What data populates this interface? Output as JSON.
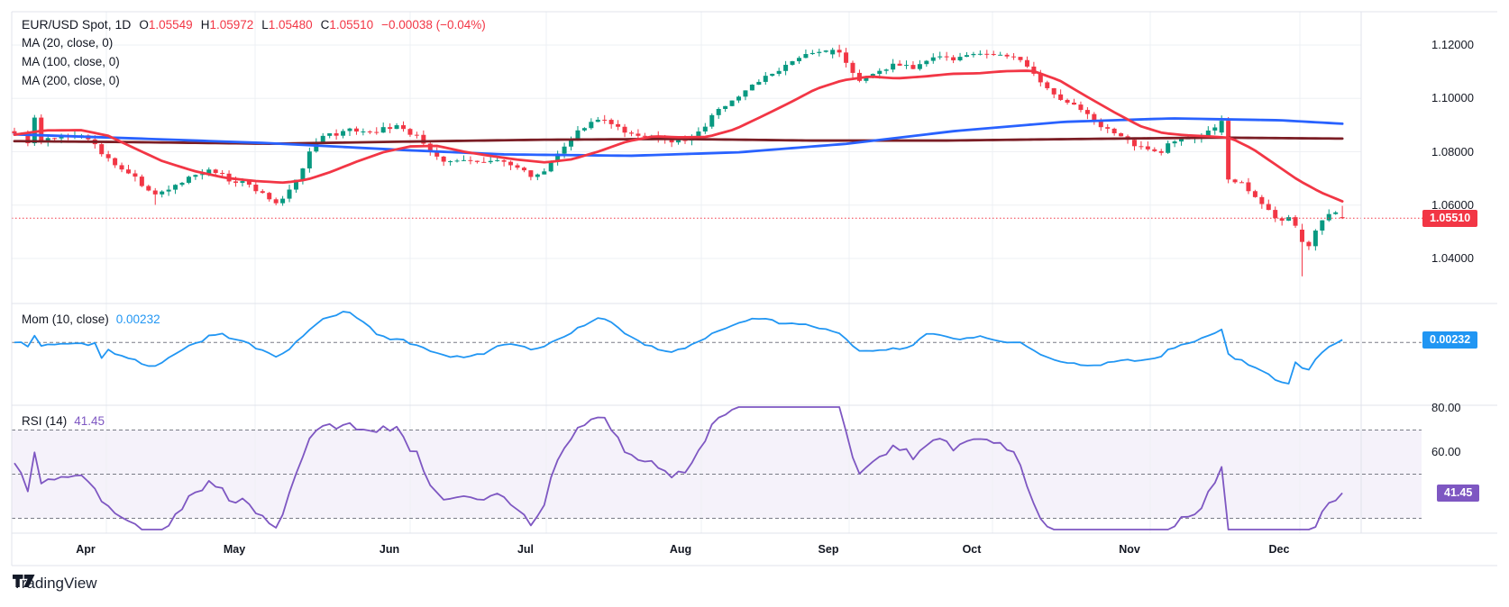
{
  "legend": {
    "symbol": "EUR/USD Spot, 1D",
    "ohlc_tokens": [
      {
        "k": "O",
        "v": "1.05549"
      },
      {
        "k": "H",
        "v": "1.05972"
      },
      {
        "k": "L",
        "v": "1.05480"
      },
      {
        "k": "C",
        "v": "1.05510"
      }
    ],
    "change_token": "−0.00038 (−0.04%)",
    "ma_lines": [
      "MA (20, close, 0)",
      "MA (100, close, 0)",
      "MA (200, close, 0)"
    ]
  },
  "price_axis": {
    "ticks": [
      "1.12000",
      "1.10000",
      "1.08000",
      "1.06000",
      "1.04000"
    ],
    "tick_values": [
      1.12,
      1.1,
      1.08,
      1.06,
      1.04
    ],
    "current_badge": "1.05510"
  },
  "momentum_pane": {
    "label": "Mom (10, close)",
    "value": "0.00232",
    "badge": "0.00232"
  },
  "rsi_pane": {
    "label": "RSI (14)",
    "value": "41.45",
    "badge": "41.45",
    "axis_labels": [
      "80.00",
      "60.00"
    ],
    "axis_label_values": [
      80,
      60
    ]
  },
  "time_axis": {
    "months": [
      "Apr",
      "May",
      "Jun",
      "Jul",
      "Aug",
      "Sep",
      "Oct",
      "Nov",
      "Dec"
    ]
  },
  "attribution": {
    "brand": "TradingView"
  },
  "colors": {
    "background": "#ffffff",
    "frame": "#e0e3eb",
    "grid": "#eef0f4",
    "text": "#131722",
    "up": "#089981",
    "down": "#f23645",
    "ma20": "#f23645",
    "ma100": "#2962ff",
    "ma200": "#7b1e25",
    "momentum": "#2196f3",
    "momentum_badge": "#2196f3",
    "rsi": "#7e57c2",
    "rsi_badge": "#7e57c2",
    "rsi_band_fill": "rgba(126,87,194,0.08)",
    "dashed_level": "#787b86",
    "price_line": "#f23645"
  },
  "chart_data": {
    "type": "candlestick",
    "symbol": "EUR/USD Spot",
    "interval": "1D",
    "last_ohlc": {
      "open": 1.05549,
      "high": 1.05972,
      "low": 1.0548,
      "close": 1.0551,
      "change": -0.00038,
      "change_pct": -0.04
    },
    "current_price": 1.0551,
    "y_ticks": [
      1.12,
      1.1,
      1.08,
      1.06,
      1.04
    ],
    "months": [
      "Apr",
      "May",
      "Jun",
      "Jul",
      "Aug",
      "Sep",
      "Oct",
      "Nov",
      "Dec"
    ],
    "close_path": [
      [
        8,
        1.0858
      ],
      [
        24,
        1.0872
      ],
      [
        32,
        1.0828
      ],
      [
        38,
        1.0922
      ],
      [
        46,
        1.0835
      ],
      [
        58,
        1.085
      ],
      [
        70,
        1.0862
      ],
      [
        82,
        1.0856
      ],
      [
        94,
        1.0855
      ],
      [
        105,
        1.083
      ],
      [
        115,
        1.0788
      ],
      [
        125,
        1.0762
      ],
      [
        135,
        1.074
      ],
      [
        148,
        1.0705
      ],
      [
        160,
        1.0668
      ],
      [
        172,
        1.0645
      ],
      [
        184,
        1.0648
      ],
      [
        196,
        1.0672
      ],
      [
        208,
        1.07
      ],
      [
        222,
        1.0722
      ],
      [
        234,
        1.0732
      ],
      [
        246,
        1.0712
      ],
      [
        258,
        1.0675
      ],
      [
        270,
        1.0692
      ],
      [
        282,
        1.0665
      ],
      [
        295,
        1.063
      ],
      [
        307,
        1.0612
      ],
      [
        320,
        1.0645
      ],
      [
        333,
        1.0722
      ],
      [
        347,
        1.082
      ],
      [
        360,
        1.0866
      ],
      [
        373,
        1.086
      ],
      [
        386,
        1.0885
      ],
      [
        399,
        1.0872
      ],
      [
        412,
        1.0868
      ],
      [
        426,
        1.089
      ],
      [
        440,
        1.0892
      ],
      [
        452,
        1.0878
      ],
      [
        464,
        1.0852
      ],
      [
        476,
        1.08
      ],
      [
        490,
        1.0772
      ],
      [
        504,
        1.0758
      ],
      [
        518,
        1.0768
      ],
      [
        532,
        1.0762
      ],
      [
        546,
        1.0772
      ],
      [
        560,
        1.0768
      ],
      [
        574,
        1.0742
      ],
      [
        588,
        1.0712
      ],
      [
        600,
        1.0722
      ],
      [
        614,
        1.0768
      ],
      [
        628,
        1.083
      ],
      [
        642,
        1.0878
      ],
      [
        656,
        1.0912
      ],
      [
        668,
        1.0926
      ],
      [
        680,
        1.0902
      ],
      [
        694,
        1.0868
      ],
      [
        708,
        1.0852
      ],
      [
        722,
        1.0862
      ],
      [
        736,
        1.0846
      ],
      [
        750,
        1.0836
      ],
      [
        764,
        1.0852
      ],
      [
        778,
        1.088
      ],
      [
        792,
        1.094
      ],
      [
        806,
        1.0982
      ],
      [
        820,
        1.1015
      ],
      [
        834,
        1.1052
      ],
      [
        848,
        1.108
      ],
      [
        862,
        1.1105
      ],
      [
        876,
        1.1135
      ],
      [
        890,
        1.1158
      ],
      [
        904,
        1.1172
      ],
      [
        918,
        1.1185
      ],
      [
        928,
        1.1188
      ],
      [
        938,
        1.113
      ],
      [
        950,
        1.1068
      ],
      [
        962,
        1.1082
      ],
      [
        974,
        1.1102
      ],
      [
        986,
        1.1118
      ],
      [
        1000,
        1.1132
      ],
      [
        1014,
        1.1112
      ],
      [
        1028,
        1.1138
      ],
      [
        1042,
        1.1158
      ],
      [
        1056,
        1.1148
      ],
      [
        1070,
        1.1162
      ],
      [
        1084,
        1.1172
      ],
      [
        1098,
        1.1158
      ],
      [
        1112,
        1.1168
      ],
      [
        1126,
        1.1158
      ],
      [
        1138,
        1.1122
      ],
      [
        1150,
        1.1075
      ],
      [
        1162,
        1.1032
      ],
      [
        1175,
        1.1002
      ],
      [
        1188,
        1.0982
      ],
      [
        1200,
        1.095
      ],
      [
        1212,
        1.092
      ],
      [
        1225,
        1.0888
      ],
      [
        1238,
        1.0858
      ],
      [
        1250,
        1.0842
      ],
      [
        1262,
        1.082
      ],
      [
        1275,
        1.0802
      ],
      [
        1288,
        1.0792
      ],
      [
        1300,
        1.0842
      ],
      [
        1312,
        1.085
      ],
      [
        1324,
        1.0858
      ],
      [
        1336,
        1.0868
      ],
      [
        1348,
        1.0892
      ],
      [
        1356,
        1.0912
      ],
      [
        1364,
        1.0698
      ],
      [
        1376,
        1.0688
      ],
      [
        1388,
        1.0645
      ],
      [
        1400,
        1.0602
      ],
      [
        1410,
        1.0565
      ],
      [
        1418,
        1.0528
      ],
      [
        1428,
        1.0552
      ],
      [
        1436,
        1.0528
      ],
      [
        1444,
        1.0458
      ],
      [
        1452,
        1.0442
      ],
      [
        1460,
        1.0502
      ],
      [
        1470,
        1.0562
      ],
      [
        1480,
        1.0582
      ],
      [
        1489,
        1.0552
      ]
    ],
    "ma20_path": [
      [
        8,
        1.086
      ],
      [
        50,
        1.088
      ],
      [
        90,
        1.0881
      ],
      [
        120,
        1.086
      ],
      [
        150,
        1.0812
      ],
      [
        180,
        1.0765
      ],
      [
        215,
        1.0728
      ],
      [
        250,
        1.0702
      ],
      [
        285,
        1.069
      ],
      [
        315,
        1.0684
      ],
      [
        340,
        1.0695
      ],
      [
        365,
        1.0722
      ],
      [
        395,
        1.0762
      ],
      [
        425,
        1.0798
      ],
      [
        455,
        1.082
      ],
      [
        485,
        1.0822
      ],
      [
        515,
        1.08
      ],
      [
        545,
        1.0784
      ],
      [
        575,
        1.077
      ],
      [
        605,
        1.076
      ],
      [
        635,
        1.0772
      ],
      [
        665,
        1.0802
      ],
      [
        695,
        1.0838
      ],
      [
        725,
        1.0858
      ],
      [
        755,
        1.0854
      ],
      [
        785,
        1.0856
      ],
      [
        815,
        1.0884
      ],
      [
        845,
        1.0932
      ],
      [
        875,
        1.0982
      ],
      [
        905,
        1.1035
      ],
      [
        935,
        1.1068
      ],
      [
        965,
        1.1082
      ],
      [
        995,
        1.1075
      ],
      [
        1025,
        1.1082
      ],
      [
        1055,
        1.1092
      ],
      [
        1085,
        1.1094
      ],
      [
        1115,
        1.1102
      ],
      [
        1145,
        1.1104
      ],
      [
        1175,
        1.1068
      ],
      [
        1205,
        1.1008
      ],
      [
        1235,
        1.095
      ],
      [
        1265,
        1.0896
      ],
      [
        1290,
        1.087
      ],
      [
        1315,
        1.0862
      ],
      [
        1340,
        1.0858
      ],
      [
        1365,
        1.0852
      ],
      [
        1390,
        1.081
      ],
      [
        1415,
        1.0752
      ],
      [
        1440,
        1.0694
      ],
      [
        1465,
        1.0648
      ],
      [
        1495,
        1.0606
      ]
    ],
    "ma100_path": [
      [
        8,
        1.0866
      ],
      [
        150,
        1.085
      ],
      [
        300,
        1.0832
      ],
      [
        450,
        1.0806
      ],
      [
        560,
        1.079
      ],
      [
        700,
        1.0785
      ],
      [
        820,
        1.0798
      ],
      [
        940,
        1.083
      ],
      [
        1060,
        1.0878
      ],
      [
        1180,
        1.0912
      ],
      [
        1300,
        1.0925
      ],
      [
        1420,
        1.0918
      ],
      [
        1500,
        1.0903
      ]
    ],
    "ma200_path": [
      [
        8,
        1.084
      ],
      [
        150,
        1.0836
      ],
      [
        300,
        1.083
      ],
      [
        450,
        1.0838
      ],
      [
        600,
        1.0845
      ],
      [
        750,
        1.0848
      ],
      [
        900,
        1.0842
      ],
      [
        1050,
        1.0842
      ],
      [
        1200,
        1.0848
      ],
      [
        1350,
        1.0853
      ],
      [
        1500,
        1.0849
      ]
    ],
    "special_candles": {
      "3": {
        "o": 1.0832,
        "h": 1.0938,
        "l": 1.0822,
        "c": 1.0928
      },
      "4": {
        "o": 1.0928,
        "h": 1.094,
        "l": 1.0828,
        "c": 1.0838
      },
      "21": {
        "l": 1.0601
      },
      "122": {
        "o": 1.1165,
        "h": 1.119,
        "l": 1.115,
        "c": 1.1182
      },
      "123": {
        "o": 1.1182,
        "h": 1.1201,
        "l": 1.1155,
        "c": 1.1172
      },
      "180": {
        "o": 1.0872,
        "h": 1.0936,
        "l": 1.0862,
        "c": 1.0916
      },
      "181": {
        "o": 1.0916,
        "h": 1.093,
        "l": 1.0682,
        "c": 1.0696
      },
      "192": {
        "o": 1.0508,
        "h": 1.053,
        "l": 1.0333,
        "c": 1.0462
      },
      "198": {
        "o": 1.05549,
        "h": 1.05972,
        "l": 1.0548,
        "c": 1.0551
      }
    },
    "indicators": [
      {
        "name": "Momentum",
        "length": 10,
        "source": "close",
        "last": 0.00232,
        "zero_line": true
      },
      {
        "name": "RSI",
        "length": 14,
        "last": 41.45,
        "levels": [
          70,
          50,
          30
        ],
        "band": [
          30,
          70
        ],
        "axis_marks": [
          80,
          60
        ]
      }
    ]
  }
}
